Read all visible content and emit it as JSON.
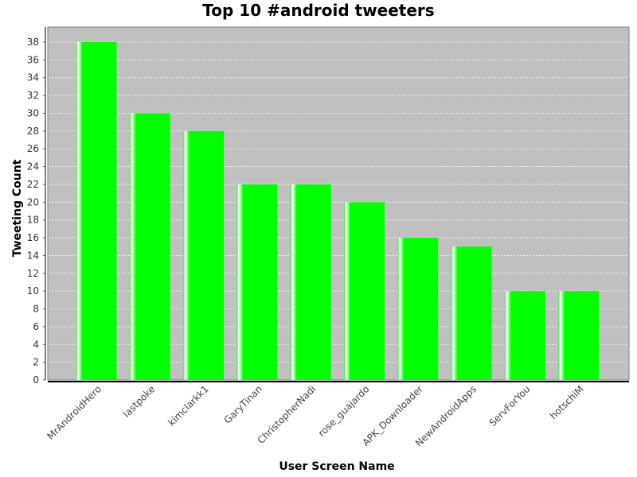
{
  "chart_data": {
    "type": "bar",
    "title": "Top 10 #android tweeters",
    "xlabel": "User Screen Name",
    "ylabel": "Tweeting Count",
    "categories": [
      "MrAndroidHero",
      "lastpoke",
      "kimclarkk1",
      "GaryTinan",
      "ChristopherNadi",
      "rose_guajardo",
      "APK_Downloader",
      "NewAndroidApps",
      "ServForYou",
      "hotschiM"
    ],
    "values": [
      38,
      30,
      28,
      22,
      22,
      20,
      16,
      15,
      10,
      10
    ],
    "ylim": [
      0,
      39.7
    ],
    "yticks": [
      0,
      2,
      4,
      6,
      8,
      10,
      12,
      14,
      16,
      18,
      20,
      22,
      24,
      26,
      28,
      30,
      32,
      34,
      36,
      38
    ],
    "grid": true,
    "bar_color": "#00ff00",
    "plot_background": "#c0c0c0",
    "legend": "none"
  }
}
